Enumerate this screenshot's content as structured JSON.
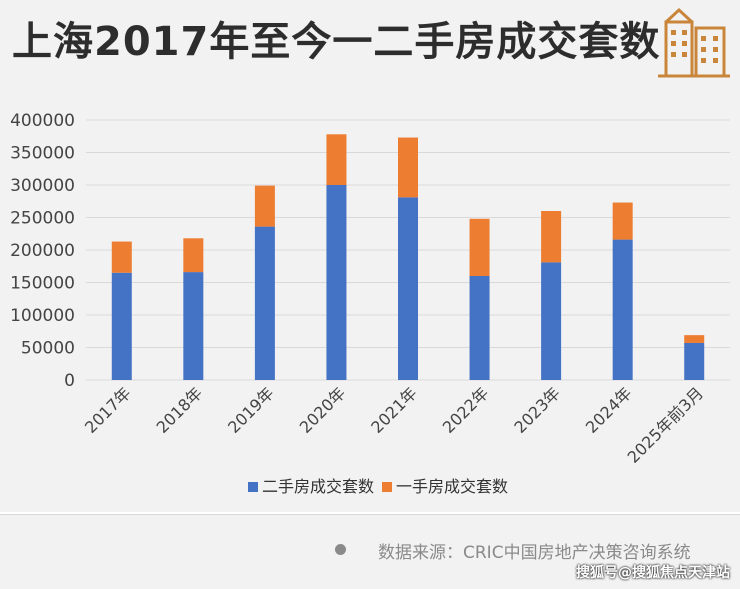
{
  "title": "上海2017年至今一二手房成交套数",
  "source_text": "数据来源：CRIC中国房地产决策咨询系统",
  "watermark_text": "搜狐号@搜狐焦点天津站",
  "icons": {
    "building": "building-icon",
    "source_bullet": "dot-icon"
  },
  "colors": {
    "secondhand": "#4472c4",
    "newhome": "#ed7d31",
    "icon": "#c9853a",
    "grid": "#d9d9d9",
    "axis_text": "#444444"
  },
  "chart_data": {
    "type": "bar",
    "stacked": true,
    "categories": [
      "2017年",
      "2018年",
      "2019年",
      "2020年",
      "2021年",
      "2022年",
      "2023年",
      "2024年",
      "2025年前3月"
    ],
    "series": [
      {
        "name": "二手房成交套数",
        "values": [
          165000,
          166000,
          236000,
          300000,
          281000,
          160000,
          181000,
          216000,
          57000
        ]
      },
      {
        "name": "一手房成交套数",
        "values": [
          48000,
          52000,
          63000,
          78000,
          92000,
          88000,
          79000,
          57000,
          12000
        ]
      }
    ],
    "ylim": [
      0,
      400000
    ],
    "yticks": [
      0,
      50000,
      100000,
      150000,
      200000,
      250000,
      300000,
      350000,
      400000
    ],
    "grid": true,
    "legend_position": "bottom"
  }
}
